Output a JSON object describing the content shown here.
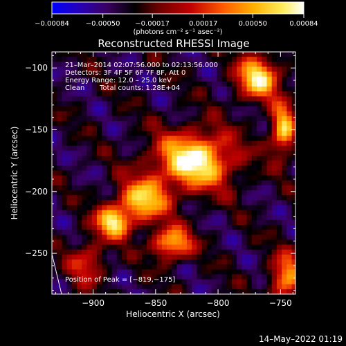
{
  "chart_data": {
    "type": "heatmap",
    "title": "Reconstructed RHESSI Image",
    "xlabel": "Heliocentric X (arcsec)",
    "ylabel": "Heliocentric Y (arcsec)",
    "xlim": [
      -933,
      -738
    ],
    "ylim": [
      -283,
      -87
    ],
    "x_ticks": [
      -900,
      -850,
      -800,
      -750
    ],
    "y_ticks": [
      -100,
      -150,
      -200,
      -250
    ],
    "x_tick_labels": [
      "−900",
      "−850",
      "−800",
      "−750"
    ],
    "y_tick_labels": [
      "−100",
      "−150",
      "−200",
      "−250"
    ],
    "colorbar": {
      "min": -0.00084,
      "max": 0.00084,
      "tick_values": [
        -0.00084,
        -0.0005,
        -0.00017,
        0.00017,
        0.0005,
        0.00084
      ],
      "tick_labels": [
        "−0.00084",
        "−0.00050",
        "−0.00017",
        "0.00017",
        "0.00050",
        "0.00084"
      ],
      "unit_label": "(photons cm⁻² s⁻¹ asec⁻²)",
      "colors": [
        "#0000ff",
        "#2a00b0",
        "#3a0060",
        "#000000",
        "#6a0000",
        "#c00000",
        "#ff5a00",
        "#ffb000",
        "#ffee60",
        "#ffffff"
      ]
    },
    "sources": [
      {
        "x": -819,
        "y": -175,
        "peak": 0.00084,
        "sx": 22,
        "sy": 16
      },
      {
        "x": -860,
        "y": -207,
        "peak": 0.0006,
        "sx": 14,
        "sy": 12
      },
      {
        "x": -884,
        "y": -225,
        "peak": 0.00066,
        "sx": 10,
        "sy": 9
      },
      {
        "x": -768,
        "y": -108,
        "peak": 0.0007,
        "sx": 12,
        "sy": 12
      },
      {
        "x": -748,
        "y": -150,
        "peak": 0.00063,
        "sx": 7,
        "sy": 14
      },
      {
        "x": -837,
        "y": -242,
        "peak": 0.00058,
        "sx": 11,
        "sy": 9
      },
      {
        "x": -745,
        "y": -270,
        "peak": 0.00045,
        "sx": 9,
        "sy": 14
      },
      {
        "x": -905,
        "y": -258,
        "peak": 0.00018,
        "sx": 10,
        "sy": 12
      }
    ],
    "peak_position": [
      -819,
      -175
    ]
  },
  "annotations": {
    "time_range": "21–Mar–2014 02:07:56.000 to 02:13:56.000",
    "detectors": "Detectors: 3F 4F 5F 6F 7F 8F, Att 0",
    "energy": "Energy Range: 12.0 – 25.0 keV",
    "clean": "Clean",
    "total_counts": "Total counts: 1.28E+04",
    "peak_text": "Position of Peak = [−819,−175]"
  },
  "footer": {
    "date_stamp": "14–May–2022 01:19"
  }
}
